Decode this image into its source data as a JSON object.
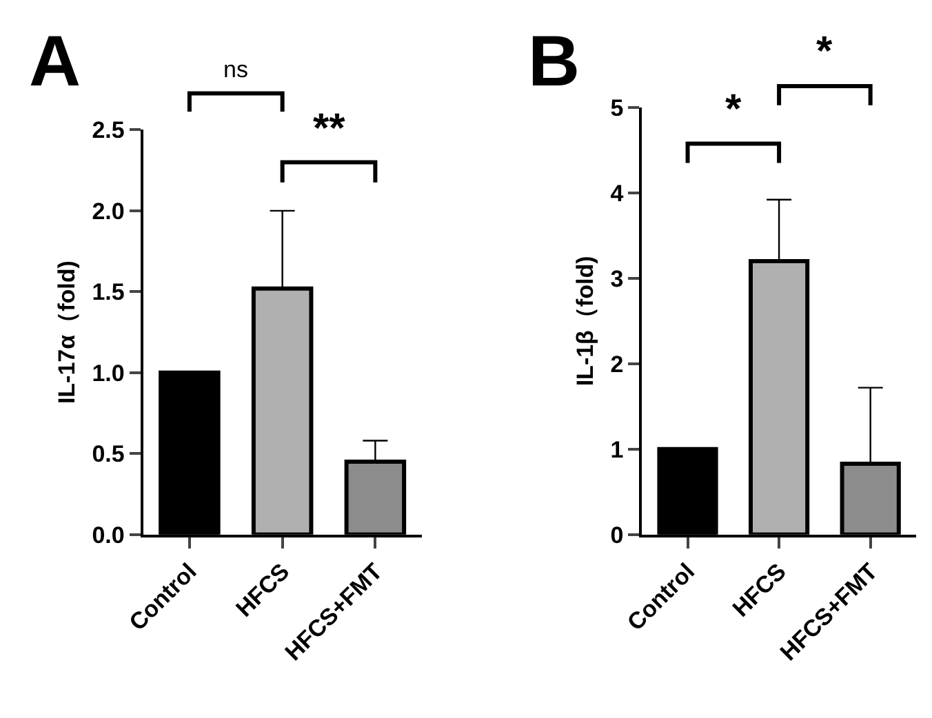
{
  "chart_data": [
    {
      "type": "bar",
      "title": "A",
      "ylabel": "IL-17α（fold)",
      "categories": [
        "Control",
        "HFCS",
        "HFCS+FMT"
      ],
      "values": [
        1.0,
        1.52,
        0.45
      ],
      "colors": [
        "#000000",
        "#b0b0b0",
        "#8c8c8c"
      ],
      "errors": [
        null,
        [
          1.52,
          2.0
        ],
        [
          0.45,
          0.58
        ]
      ],
      "ylim": [
        0,
        2.5
      ],
      "yticks": [
        {
          "value": 0,
          "label": "0.0"
        },
        {
          "value": 0.5,
          "label": "0.5"
        },
        {
          "value": 1,
          "label": "1.0"
        },
        {
          "value": 1.5,
          "label": "1.5"
        },
        {
          "value": 2,
          "label": "2.0"
        },
        {
          "value": 2.5,
          "label": "2.5"
        }
      ],
      "annotations": [
        "ns",
        "**"
      ]
    },
    {
      "type": "bar",
      "title": "B",
      "ylabel": "IL-1β（fold)",
      "categories": [
        "Control",
        "HFCS",
        "HFCS+FMT"
      ],
      "values": [
        1.0,
        3.2,
        0.83
      ],
      "colors": [
        "#000000",
        "#b0b0b0",
        "#8c8c8c"
      ],
      "errors": [
        null,
        [
          3.2,
          3.92
        ],
        [
          0.83,
          1.72
        ]
      ],
      "ylim": [
        0,
        5
      ],
      "yticks": [
        0,
        1,
        2,
        3,
        4,
        5
      ],
      "annotations": [
        "*",
        "*"
      ]
    }
  ]
}
